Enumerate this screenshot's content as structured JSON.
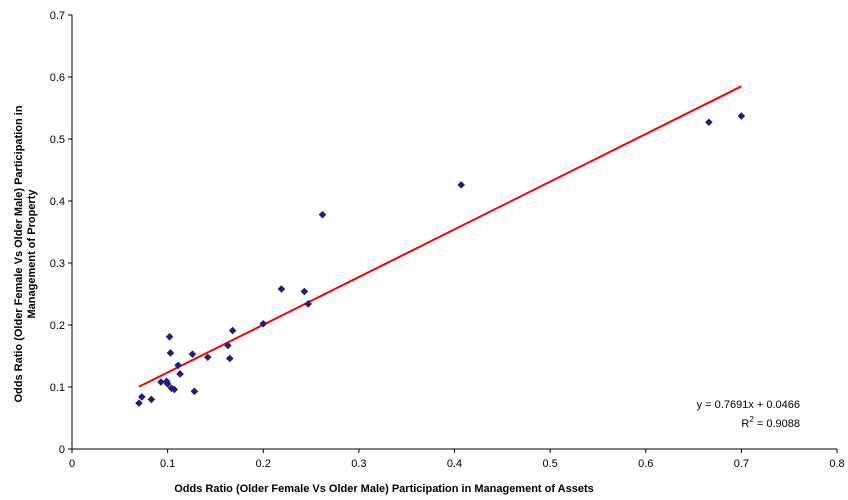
{
  "chart_data": {
    "type": "scatter",
    "xlabel": "Odds Ratio (Older Female Vs Older Male) Participation in Management of Assets",
    "ylabel_lines": [
      "Odds Ratio (Older Female Vs Older Male) Participation in",
      "Management of Property"
    ],
    "xlim": [
      0,
      0.8
    ],
    "ylim": [
      0,
      0.7
    ],
    "x_ticks": [
      0,
      0.1,
      0.2,
      0.3,
      0.4,
      0.5,
      0.6,
      0.7,
      0.8
    ],
    "y_ticks": [
      0,
      0.1,
      0.2,
      0.3,
      0.4,
      0.5,
      0.6,
      0.7
    ],
    "x_tick_labels": [
      "0",
      "0.1",
      "0.2",
      "0.3",
      "0.4",
      "0.5",
      "0.6",
      "0.7",
      "0.8"
    ],
    "y_tick_labels": [
      "0",
      "0.1",
      "0.2",
      "0.3",
      "0.4",
      "0.5",
      "0.6",
      "0.7"
    ],
    "grid": false,
    "series": [
      {
        "marker": "diamond",
        "color": "#1f1f7a",
        "points": [
          [
            0.07,
            0.074
          ],
          [
            0.073,
            0.084
          ],
          [
            0.083,
            0.08
          ],
          [
            0.093,
            0.108
          ],
          [
            0.099,
            0.109
          ],
          [
            0.1,
            0.105
          ],
          [
            0.102,
            0.181
          ],
          [
            0.103,
            0.155
          ],
          [
            0.104,
            0.098
          ],
          [
            0.107,
            0.096
          ],
          [
            0.111,
            0.135
          ],
          [
            0.113,
            0.121
          ],
          [
            0.126,
            0.153
          ],
          [
            0.128,
            0.093
          ],
          [
            0.142,
            0.148
          ],
          [
            0.163,
            0.167
          ],
          [
            0.165,
            0.146
          ],
          [
            0.168,
            0.191
          ],
          [
            0.2,
            0.202
          ],
          [
            0.219,
            0.258
          ],
          [
            0.243,
            0.254
          ],
          [
            0.247,
            0.234
          ],
          [
            0.262,
            0.378
          ],
          [
            0.407,
            0.426
          ],
          [
            0.666,
            0.527
          ],
          [
            0.7,
            0.537
          ]
        ]
      }
    ],
    "trendline": {
      "color": "#ff0000",
      "slope": 0.7691,
      "intercept": 0.0466,
      "x_range": [
        0.07,
        0.7
      ],
      "equation_label": "y = 0.7691x + 0.0466",
      "r2_prefix": "R",
      "r2_superscript": "2",
      "r2_value": " = 0.9088"
    }
  }
}
